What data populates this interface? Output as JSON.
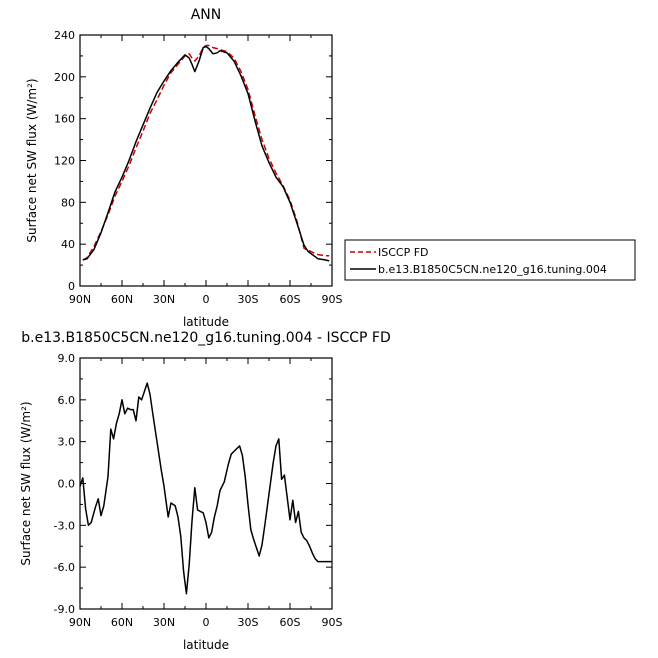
{
  "chart_data": [
    {
      "type": "line",
      "title": "ANN",
      "xlabel": "latitude",
      "ylabel": "Surface net SW flux (W/m²)",
      "xlim": [
        90,
        -90
      ],
      "ylim": [
        0,
        240
      ],
      "x_ticks": [
        90,
        60,
        30,
        0,
        -30,
        -60,
        -90
      ],
      "x_tick_labels": [
        "90N",
        "60N",
        "30N",
        "0",
        "30S",
        "60S",
        "90S"
      ],
      "y_ticks": [
        0,
        40,
        80,
        120,
        160,
        200,
        240
      ],
      "y_tick_labels": [
        "0",
        "40",
        "80",
        "120",
        "160",
        "200",
        "240"
      ],
      "legend": "right-outside",
      "series": [
        {
          "name": "ISCCP FD",
          "color": "#cc0000",
          "style": "dashed",
          "x": [
            88,
            85,
            80,
            75,
            70,
            65,
            60,
            55,
            50,
            45,
            40,
            35,
            30,
            25,
            20,
            15,
            12,
            10,
            8,
            5,
            2,
            0,
            -2,
            -5,
            -8,
            -10,
            -15,
            -20,
            -25,
            -30,
            -35,
            -40,
            -45,
            -50,
            -55,
            -60,
            -65,
            -70,
            -73,
            -75,
            -78,
            -80,
            -85,
            -88
          ],
          "y": [
            25,
            27,
            38,
            52,
            68,
            86,
            100,
            115,
            132,
            148,
            165,
            178,
            192,
            204,
            212,
            220,
            222,
            218,
            215,
            220,
            228,
            230,
            230,
            228,
            227,
            226,
            224,
            218,
            205,
            188,
            163,
            140,
            122,
            108,
            96,
            82,
            62,
            36,
            34,
            33,
            31,
            30,
            29,
            29
          ]
        },
        {
          "name": "b.e13.B1850C5CN.ne120_g16.tuning.004",
          "color": "#000000",
          "style": "solid",
          "x": [
            88,
            85,
            80,
            75,
            70,
            65,
            60,
            55,
            50,
            45,
            40,
            35,
            30,
            25,
            20,
            15,
            12,
            10,
            8,
            5,
            2,
            0,
            -2,
            -5,
            -8,
            -10,
            -15,
            -20,
            -25,
            -30,
            -35,
            -40,
            -45,
            -50,
            -55,
            -60,
            -65,
            -70,
            -73,
            -75,
            -78,
            -80,
            -85,
            -88
          ],
          "y": [
            25,
            26,
            35,
            51,
            70,
            90,
            104,
            120,
            138,
            154,
            170,
            185,
            196,
            206,
            214,
            221,
            218,
            212,
            205,
            215,
            228,
            229,
            227,
            222,
            223,
            225,
            223,
            215,
            201,
            184,
            158,
            134,
            118,
            104,
            95,
            80,
            60,
            39,
            33,
            31,
            28,
            26,
            25,
            24
          ]
        }
      ]
    },
    {
      "type": "line",
      "title": "b.e13.B1850C5CN.ne120_g16.tuning.004 - ISCCP FD",
      "xlabel": "latitude",
      "ylabel": "Surface net SW flux (W/m²)",
      "xlim": [
        90,
        -90
      ],
      "ylim": [
        -9,
        9
      ],
      "x_ticks": [
        90,
        60,
        30,
        0,
        -30,
        -60,
        -90
      ],
      "x_tick_labels": [
        "90N",
        "60N",
        "30N",
        "0",
        "30S",
        "60S",
        "90S"
      ],
      "y_ticks": [
        -9,
        -6,
        -3,
        0,
        3,
        6,
        9
      ],
      "y_tick_labels": [
        "-9.0",
        "-6.0",
        "-3.0",
        "0.0",
        "3.0",
        "6.0",
        "9.0"
      ],
      "series": [
        {
          "color": "#000000",
          "style": "solid",
          "x": [
            90,
            88,
            86,
            84,
            82,
            79,
            77,
            75,
            73,
            70,
            68,
            66,
            64,
            62,
            60,
            58,
            56,
            54,
            52,
            50,
            48,
            46,
            44,
            42,
            40,
            38,
            35,
            32,
            30,
            27,
            25,
            22,
            20,
            18,
            16,
            14,
            12,
            10,
            8,
            6,
            4,
            2,
            0,
            -2,
            -4,
            -6,
            -8,
            -10,
            -13,
            -16,
            -18,
            -20,
            -22,
            -24,
            -26,
            -28,
            -30,
            -32,
            -34,
            -36,
            -38,
            -40,
            -42,
            -44,
            -46,
            -48,
            -50,
            -52,
            -54,
            -56,
            -58,
            -60,
            -62,
            -64,
            -66,
            -68,
            -70,
            -72,
            -74,
            -76,
            -78,
            -80,
            -82,
            -84,
            -86,
            -88,
            -90
          ],
          "y": [
            -0.2,
            0.4,
            -1.8,
            -3.0,
            -2.8,
            -1.7,
            -1.1,
            -2.3,
            -1.6,
            0.5,
            3.9,
            3.2,
            4.3,
            5.0,
            6.0,
            5.0,
            5.4,
            5.3,
            5.3,
            4.5,
            6.2,
            6.0,
            6.6,
            7.2,
            6.4,
            5.0,
            3.0,
            1.0,
            -0.2,
            -2.4,
            -1.4,
            -1.6,
            -2.4,
            -3.8,
            -6.3,
            -7.9,
            -5.8,
            -2.7,
            -0.3,
            -1.9,
            -2.0,
            -2.1,
            -2.8,
            -3.9,
            -3.5,
            -2.4,
            -1.6,
            -0.5,
            0.1,
            1.4,
            2.1,
            2.3,
            2.5,
            2.7,
            2.0,
            0.5,
            -1.5,
            -3.3,
            -4.0,
            -4.6,
            -5.2,
            -4.4,
            -3.0,
            -1.5,
            0.0,
            1.5,
            2.7,
            3.2,
            0.3,
            0.6,
            -1.0,
            -2.6,
            -1.2,
            -2.8,
            -2.0,
            -3.5,
            -3.9,
            -4.1,
            -4.5,
            -5.0,
            -5.4,
            -5.6,
            -5.6,
            -5.6,
            -5.6,
            -5.6,
            -5.6
          ]
        }
      ]
    }
  ]
}
